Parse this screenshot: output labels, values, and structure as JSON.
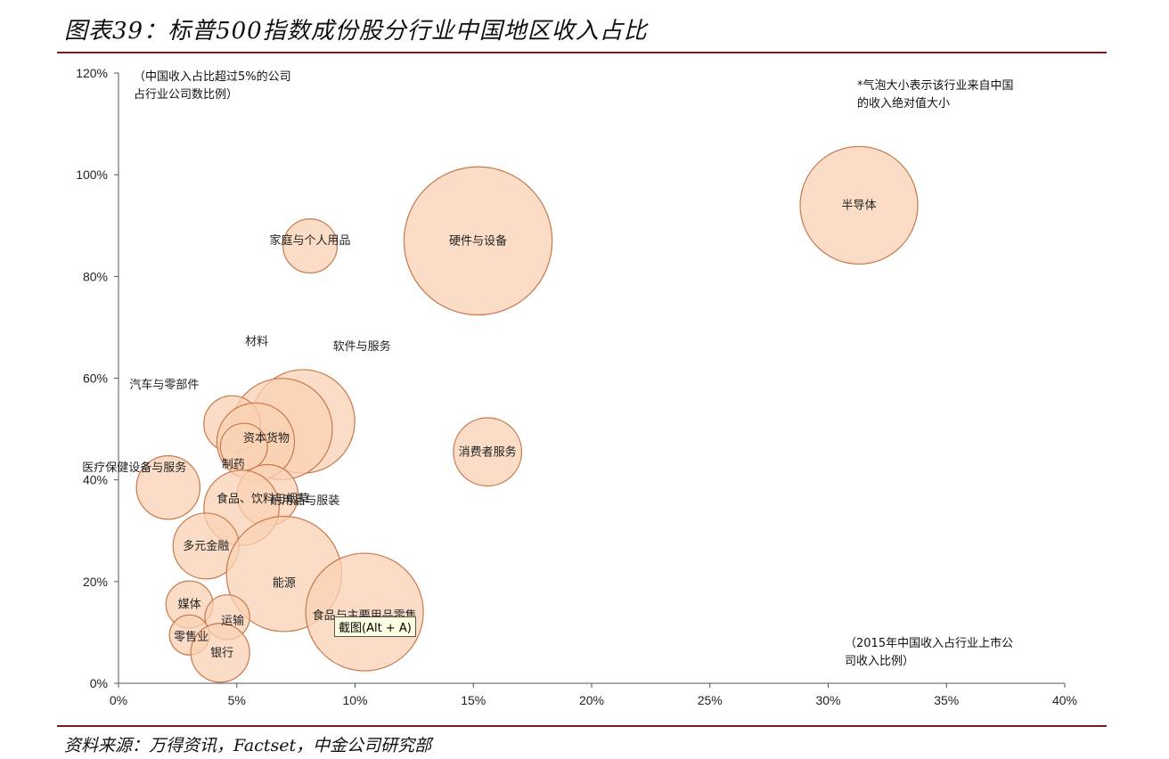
{
  "title": "图表39：标普500指数成份股分行业中国地区收入占比",
  "source": "资料来源：万得资讯，Factset，中金公司研究部",
  "tooltip": "截图(Alt + A)",
  "colors": {
    "bubble_fill": "#fad2b4",
    "bubble_stroke": "#c8784a",
    "axis": "#555555",
    "rule": "#7a1d1d"
  },
  "chart_data": {
    "type": "scatter",
    "bubble": true,
    "title": "",
    "xlabel": "",
    "ylabel": "",
    "xlim": [
      0,
      40
    ],
    "ylim": [
      0,
      120
    ],
    "x_ticks": [
      0,
      5,
      10,
      15,
      20,
      25,
      30,
      35,
      40
    ],
    "y_ticks": [
      0,
      20,
      40,
      60,
      80,
      100,
      120
    ],
    "x_tick_labels": [
      "0%",
      "5%",
      "10%",
      "15%",
      "20%",
      "25%",
      "30%",
      "35%",
      "40%"
    ],
    "y_tick_labels": [
      "0%",
      "20%",
      "40%",
      "60%",
      "80%",
      "100%",
      "120%"
    ],
    "annotations": {
      "y_axis_note": [
        "（中国收入占比超过5%的公司",
        "占行业公司数比例）"
      ],
      "size_note": [
        "*气泡大小表示该行业来自中国",
        "的收入绝对值大小"
      ],
      "x_axis_note": [
        "（2015年中国收入占行业上市公",
        "司收入比例）"
      ]
    },
    "points": [
      {
        "label": "半导体",
        "x": 31.3,
        "y": 94,
        "size": 5.0
      },
      {
        "label": "硬件与设备",
        "x": 15.2,
        "y": 87,
        "size": 6.3
      },
      {
        "label": "家庭与个人用品",
        "x": 8.1,
        "y": 86,
        "size": 2.3
      },
      {
        "label": "消费者服务",
        "x": 15.6,
        "y": 45.5,
        "size": 2.9
      },
      {
        "label": "软件与服务",
        "x": 7.8,
        "y": 51.5,
        "size": 4.4
      },
      {
        "label": "材料",
        "x": 6.9,
        "y": 50,
        "size": 4.3
      },
      {
        "label": "汽车与零部件",
        "x": 4.8,
        "y": 51,
        "size": 2.4
      },
      {
        "label": "资本货物",
        "x": 5.8,
        "y": 47.5,
        "size": 3.3
      },
      {
        "label": "制药",
        "x": 5.3,
        "y": 46.5,
        "size": 2.0
      },
      {
        "label": "耐用品与服装",
        "x": 6.3,
        "y": 37,
        "size": 2.6
      },
      {
        "label": "医疗保健设备与服务",
        "x": 2.1,
        "y": 38.5,
        "size": 2.7
      },
      {
        "label": "食品、饮料与烟草",
        "x": 5.2,
        "y": 34.5,
        "size": 3.2
      },
      {
        "label": "多元金融",
        "x": 3.7,
        "y": 27,
        "size": 2.8
      },
      {
        "label": "能源",
        "x": 7.0,
        "y": 21.5,
        "size": 4.9
      },
      {
        "label": "食品与主要用品零售",
        "x": 10.4,
        "y": 14,
        "size": 5.0
      },
      {
        "label": "媒体",
        "x": 3.0,
        "y": 15.5,
        "size": 2.0
      },
      {
        "label": "运输",
        "x": 4.6,
        "y": 13,
        "size": 1.9
      },
      {
        "label": "零售业",
        "x": 3.0,
        "y": 9.5,
        "size": 1.7
      },
      {
        "label": "银行",
        "x": 4.3,
        "y": 6,
        "size": 2.5
      }
    ]
  }
}
